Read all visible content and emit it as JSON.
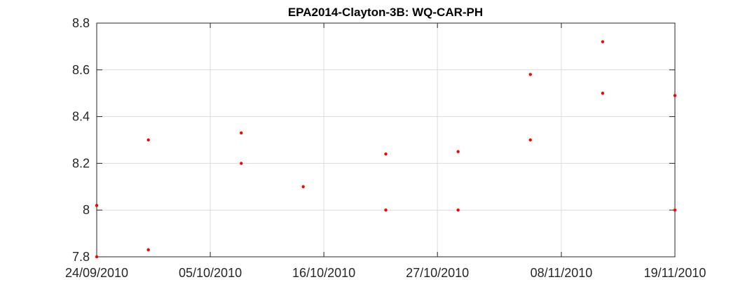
{
  "chart_data": {
    "type": "scatter",
    "title": "EPA2014-Clayton-3B: WQ-CAR-PH",
    "xlabel": "",
    "ylabel": "",
    "x_range": [
      "2010-09-24",
      "2010-11-19"
    ],
    "ylim": [
      7.8,
      8.8
    ],
    "grid": true,
    "x_ticks": [
      {
        "date": "2010-09-24",
        "label": "24/09/2010"
      },
      {
        "date": "2010-10-05",
        "label": "05/10/2010"
      },
      {
        "date": "2010-10-16",
        "label": "16/10/2010"
      },
      {
        "date": "2010-10-27",
        "label": "27/10/2010"
      },
      {
        "date": "2010-11-08",
        "label": "08/11/2010"
      },
      {
        "date": "2010-11-19",
        "label": "19/11/2010"
      }
    ],
    "y_ticks": [
      {
        "value": 7.8,
        "label": "7.8"
      },
      {
        "value": 8.0,
        "label": "8"
      },
      {
        "value": 8.2,
        "label": "8.2"
      },
      {
        "value": 8.4,
        "label": "8.4"
      },
      {
        "value": 8.6,
        "label": "8.6"
      },
      {
        "value": 8.8,
        "label": "8.8"
      }
    ],
    "series": [
      {
        "color": "#ff0000",
        "points": [
          {
            "x": "2010-09-24",
            "y": 8.02
          },
          {
            "x": "2010-09-24",
            "y": 7.8
          },
          {
            "x": "2010-09-29",
            "y": 8.3
          },
          {
            "x": "2010-09-29",
            "y": 7.83
          },
          {
            "x": "2010-10-08",
            "y": 8.33
          },
          {
            "x": "2010-10-08",
            "y": 8.2
          },
          {
            "x": "2010-10-14",
            "y": 8.1
          },
          {
            "x": "2010-10-22",
            "y": 8.24
          },
          {
            "x": "2010-10-22",
            "y": 8.0
          },
          {
            "x": "2010-10-29",
            "y": 8.25
          },
          {
            "x": "2010-10-29",
            "y": 8.0
          },
          {
            "x": "2010-11-05",
            "y": 8.58
          },
          {
            "x": "2010-11-05",
            "y": 8.3
          },
          {
            "x": "2010-11-12",
            "y": 8.72
          },
          {
            "x": "2010-11-12",
            "y": 8.5
          },
          {
            "x": "2010-11-19",
            "y": 8.49
          },
          {
            "x": "2010-11-19",
            "y": 8.0
          }
        ]
      }
    ]
  }
}
